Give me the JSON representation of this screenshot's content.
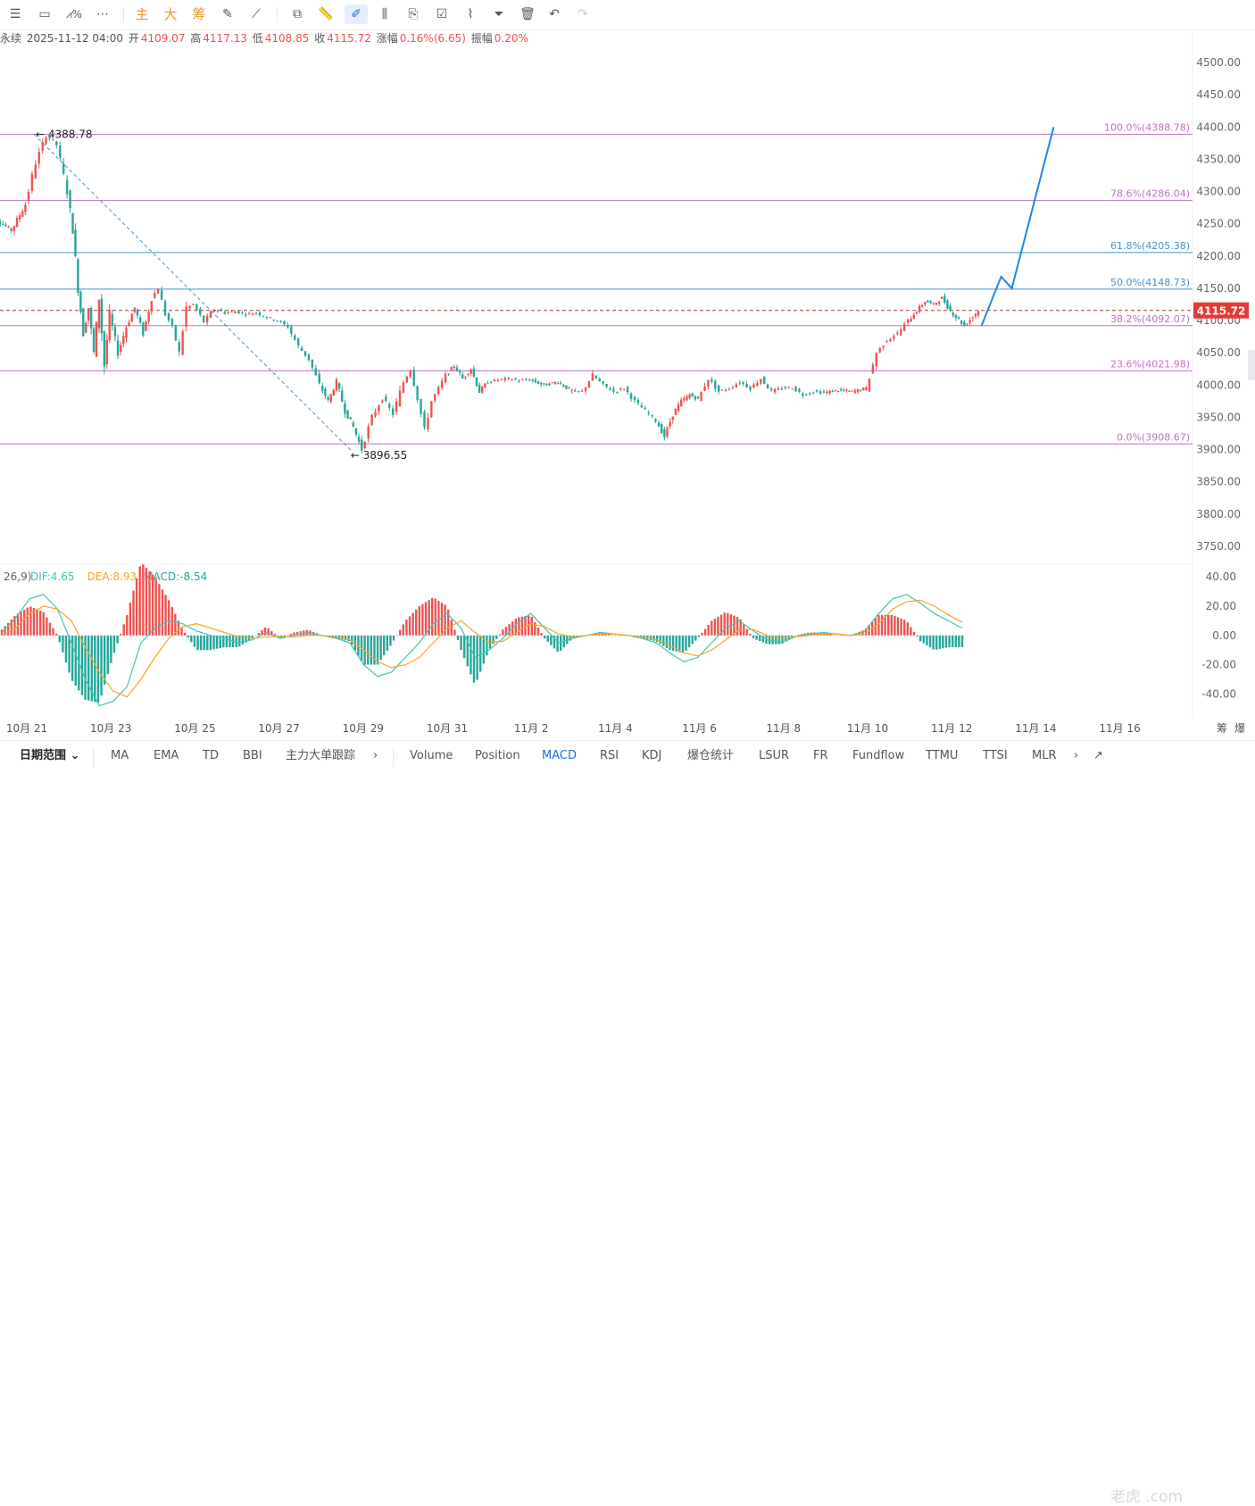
{
  "toolbar": {
    "indicator_tabs": [
      "主",
      "大",
      "筹"
    ]
  },
  "infobar": {
    "symbol_fragment": "永续",
    "datetime": "2025-11-12 04:00",
    "open_label": "开",
    "open": "4109.07",
    "high_label": "高",
    "high": "4117.13",
    "low_label": "低",
    "low": "4108.85",
    "close_label": "收",
    "close": "4115.72",
    "change_label": "涨幅",
    "change": "0.16%(6.65)",
    "amplitude_label": "振幅",
    "amplitude": "0.20%"
  },
  "colors": {
    "up": "#ef5350",
    "down": "#26a69a",
    "fib_line": "#c070c0",
    "fib_line_mid": "#4a90c8",
    "projection": "#1e88e5",
    "dif": "#3cc8b4",
    "dea": "#f5a623",
    "price_tag": "#e53935"
  },
  "chart_data": [
    {
      "type": "candlestick",
      "interval": "1h",
      "last_price": 4115.72,
      "price_axis": {
        "ylim": [
          3725,
          4525
        ],
        "ticks": [
          "4500.00",
          "4450.00",
          "4400.00",
          "4350.00",
          "4300.00",
          "4250.00",
          "4200.00",
          "4150.00",
          "4100.00",
          "4050.00",
          "4000.00",
          "3950.00",
          "3900.00",
          "3850.00",
          "3800.00",
          "3750.00"
        ]
      },
      "x_axis": {
        "ticks": [
          "10月 21",
          "10月 23",
          "10月 25",
          "10月 27",
          "10月 29",
          "10月 31",
          "11月 2",
          "11月 4",
          "11月 6",
          "11月 8",
          "11月 10",
          "11月 12",
          "11月 14",
          "11月 16"
        ],
        "right_labels": [
          "筹",
          "爆"
        ]
      },
      "fibonacci": [
        {
          "label": "100.0%(4388.78)",
          "price": 4388.78
        },
        {
          "label": "78.6%(4286.04)",
          "price": 4286.04
        },
        {
          "label": "61.8%(4205.38)",
          "price": 4205.38
        },
        {
          "label": "50.0%(4148.73)",
          "price": 4148.73
        },
        {
          "label": "38.2%(4092.07)",
          "price": 4092.07
        },
        {
          "label": "23.6%(4021.98)",
          "price": 4021.98
        },
        {
          "label": "0.0%(3908.67)",
          "price": 3908.67
        }
      ],
      "annotations": [
        {
          "text": "4388.78",
          "price": 4388.78,
          "date": "10月 21"
        },
        {
          "text": "3896.55",
          "price": 3896.55,
          "date": "10月 29"
        }
      ],
      "price_path": [
        [
          "10月 20",
          4210
        ],
        [
          "10月 20",
          4255
        ],
        [
          "10月 20",
          4240
        ],
        [
          "10月 21",
          4280
        ],
        [
          "10月 21",
          4345
        ],
        [
          "10月 21",
          4388
        ],
        [
          "10月 21",
          4372
        ],
        [
          "10月 22",
          4300
        ],
        [
          "10月 22",
          4240
        ],
        [
          "10月 22",
          4150
        ],
        [
          "10月 22",
          4080
        ],
        [
          "10月 22",
          4120
        ],
        [
          "10月 22",
          4050
        ],
        [
          "10月 22",
          4135
        ],
        [
          "10月 22",
          4030
        ],
        [
          "10月 23",
          4110
        ],
        [
          "10月 23",
          4050
        ],
        [
          "10月 23",
          4090
        ],
        [
          "10月 23",
          4120
        ],
        [
          "10月 23",
          4080
        ],
        [
          "10月 24",
          4135
        ],
        [
          "10月 24",
          4150
        ],
        [
          "10月 24",
          4110
        ],
        [
          "10月 24",
          4090
        ],
        [
          "10月 24",
          4050
        ],
        [
          "10月 24",
          4120
        ],
        [
          "10月 25",
          4125
        ],
        [
          "10月 25",
          4098
        ],
        [
          "10月 25",
          4118
        ],
        [
          "10月 25",
          4112
        ],
        [
          "10月 26",
          4114
        ],
        [
          "10月 26",
          4110
        ],
        [
          "10月 26",
          4112
        ],
        [
          "10月 26",
          4105
        ],
        [
          "10月 27",
          4100
        ],
        [
          "10月 27",
          4090
        ],
        [
          "10月 27",
          4060
        ],
        [
          "10月 27",
          4040
        ],
        [
          "10月 28",
          4000
        ],
        [
          "10月 28",
          3975
        ],
        [
          "10月 28",
          4005
        ],
        [
          "10月 28",
          3960
        ],
        [
          "10月 28",
          3935
        ],
        [
          "10月 29",
          3900
        ],
        [
          "10月 29",
          3950
        ],
        [
          "10月 29",
          3980
        ],
        [
          "10月 29",
          3955
        ],
        [
          "10月 30",
          4005
        ],
        [
          "10月 30",
          4025
        ],
        [
          "10月 30",
          3980
        ],
        [
          "10月 30",
          3930
        ],
        [
          "10月 30",
          3975
        ],
        [
          "10月 30",
          3995
        ],
        [
          "10月 31",
          4015
        ],
        [
          "10月 31",
          4030
        ],
        [
          "10月 31",
          4010
        ],
        [
          "10月 31",
          4025
        ],
        [
          "10月 31",
          3990
        ],
        [
          "11月 1",
          4005
        ],
        [
          "11月 1",
          4008
        ],
        [
          "11月 1",
          4010
        ],
        [
          "11月 1",
          4007
        ],
        [
          "11月 2",
          4008
        ],
        [
          "11月 2",
          4000
        ],
        [
          "11月 2",
          4005
        ],
        [
          "11月 3",
          3990
        ],
        [
          "11月 3",
          3990
        ],
        [
          "11月 3",
          4015
        ],
        [
          "11月 3",
          4000
        ],
        [
          "11月 4",
          3990
        ],
        [
          "11月 4",
          3995
        ],
        [
          "11月 4",
          3975
        ],
        [
          "11月 4",
          3960
        ],
        [
          "11月 5",
          3945
        ],
        [
          "11月 5",
          3920
        ],
        [
          "11月 5",
          3955
        ],
        [
          "11月 5",
          3975
        ],
        [
          "11月 5",
          3985
        ],
        [
          "11月 6",
          3978
        ],
        [
          "11月 6",
          4010
        ],
        [
          "11月 6",
          3990
        ],
        [
          "11月 6",
          3995
        ],
        [
          "11月 7",
          4005
        ],
        [
          "11月 7",
          3995
        ],
        [
          "11月 7",
          4010
        ],
        [
          "11月 7",
          3990
        ],
        [
          "11月 8",
          3995
        ],
        [
          "11月 8",
          3996
        ],
        [
          "11月 8",
          3985
        ],
        [
          "11月 8",
          3990
        ],
        [
          "11月 9",
          3988
        ],
        [
          "11月 9",
          3992
        ],
        [
          "11月 9",
          3990
        ],
        [
          "11月 10",
          3995
        ],
        [
          "11月 10",
          4050
        ],
        [
          "11月 10",
          4070
        ],
        [
          "11月 10",
          4080
        ],
        [
          "11月 11",
          4100
        ],
        [
          "11月 11",
          4115
        ],
        [
          "11月 11",
          4130
        ],
        [
          "11月 11",
          4125
        ],
        [
          "11月 11",
          4135
        ],
        [
          "11月 12",
          4115
        ],
        [
          "11月 12",
          4092
        ],
        [
          "11月 12",
          4115.72
        ]
      ],
      "projection_path": [
        [
          "11月 12",
          4092
        ],
        [
          "11月 12",
          4168
        ],
        [
          "11月 12",
          4150
        ],
        [
          "11月 14",
          4400
        ]
      ]
    },
    {
      "type": "histogram+line",
      "indicator": "MACD",
      "params_fragment": "26,9)",
      "legend": [
        {
          "name": "DIF:4.65",
          "color_key": "dif"
        },
        {
          "name": "DEA:8.93",
          "color_key": "dea"
        },
        {
          "name": "MACD:-8.54",
          "color_key": "down"
        }
      ],
      "ylim": [
        -55,
        45
      ],
      "y_ticks": [
        "40.00",
        "20.00",
        "0.00",
        "-20.00",
        "-40.00"
      ],
      "dif_path": [
        2,
        12,
        25,
        28,
        18,
        -5,
        -30,
        -48,
        -45,
        -35,
        -5,
        5,
        10,
        8,
        3,
        0,
        -2,
        -5,
        -3,
        2,
        -2,
        0,
        2,
        0,
        -2,
        -5,
        -20,
        -28,
        -25,
        -15,
        -5,
        8,
        15,
        5,
        -15,
        -10,
        -2,
        8,
        15,
        5,
        -5,
        -2,
        0,
        2,
        1,
        0,
        -2,
        -5,
        -12,
        -18,
        -15,
        -5,
        5,
        10,
        3,
        -3,
        -5,
        -1,
        1,
        2,
        1,
        0,
        3,
        15,
        25,
        28,
        22,
        15,
        10,
        5
      ],
      "dea_path": [
        0,
        5,
        15,
        20,
        18,
        10,
        -8,
        -25,
        -38,
        -42,
        -30,
        -15,
        -2,
        6,
        8,
        5,
        2,
        -1,
        -2,
        -1,
        -1,
        -1,
        0,
        0,
        -1,
        -3,
        -10,
        -18,
        -22,
        -20,
        -15,
        -5,
        5,
        10,
        2,
        -5,
        -4,
        2,
        8,
        6,
        1,
        -1,
        0,
        1,
        1,
        0,
        -1,
        -3,
        -7,
        -12,
        -14,
        -10,
        -3,
        4,
        4,
        0,
        -2,
        -1,
        0,
        1,
        1,
        0,
        1,
        8,
        18,
        23,
        24,
        20,
        14,
        9
      ]
    }
  ],
  "price_tag": "4115.72",
  "bottombar": {
    "range_label": "日期范围",
    "left_tabs": [
      "MA",
      "EMA",
      "TD",
      "BBI",
      "主力大单跟踪"
    ],
    "tabs": [
      "Volume",
      "Position",
      "MACD",
      "RSI",
      "KDJ",
      "爆仓统计",
      "LSUR",
      "FR",
      "Fundflow",
      "TTMU",
      "TTSI",
      "MLR"
    ],
    "selected": "MACD",
    "watermark": "老虎 .com"
  }
}
